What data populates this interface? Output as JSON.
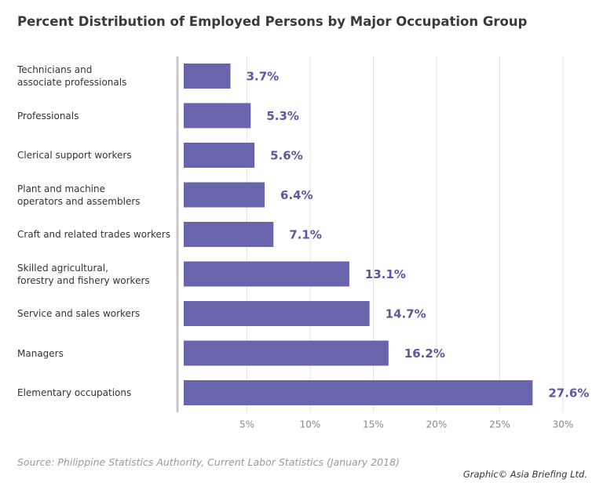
{
  "chart_data": {
    "type": "bar",
    "orientation": "horizontal",
    "title": "Percent Distribution of Employed Persons by Major Occupation Group",
    "categories": [
      "Technicians and\nassociate professionals",
      "Professionals",
      "Clerical support workers",
      "Plant and machine\noperators and assemblers",
      "Craft and related trades workers",
      "Skilled agricultural,\nforestry and fishery workers",
      "Service and sales workers",
      "Managers",
      "Elementary occupations"
    ],
    "values": [
      3.7,
      5.3,
      5.6,
      6.4,
      7.1,
      13.1,
      14.7,
      16.2,
      27.6
    ],
    "value_labels": [
      "3.7%",
      "5.3%",
      "5.6%",
      "6.4%",
      "7.1%",
      "13.1%",
      "14.7%",
      "16.2%",
      "27.6%"
    ],
    "color": "#6865ad",
    "label_color": "#5a58a0",
    "xlim": [
      0,
      30
    ],
    "xticks": [
      {
        "value": 5,
        "label": "5%"
      },
      {
        "value": 10,
        "label": "10%"
      },
      {
        "value": 15,
        "label": "15%"
      },
      {
        "value": 20,
        "label": "20%"
      },
      {
        "value": 25,
        "label": "25%"
      },
      {
        "value": 30,
        "label": "30%"
      }
    ],
    "grid": true,
    "source": "Source: Philippine Statistics Authority, Current Labor Statistics (January 2018)",
    "credit": "Graphic© Asia Briefing Ltd."
  }
}
